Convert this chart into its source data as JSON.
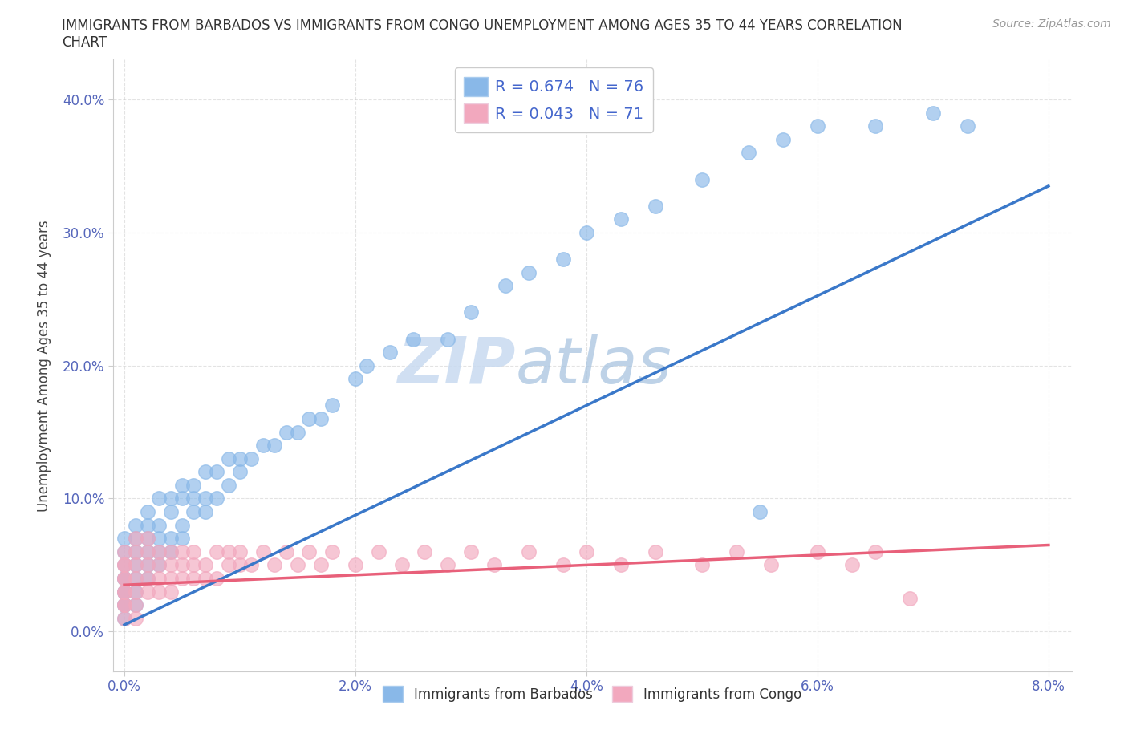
{
  "title_line1": "IMMIGRANTS FROM BARBADOS VS IMMIGRANTS FROM CONGO UNEMPLOYMENT AMONG AGES 35 TO 44 YEARS CORRELATION",
  "title_line2": "CHART",
  "source_text": "Source: ZipAtlas.com",
  "ylabel": "Unemployment Among Ages 35 to 44 years",
  "xlim": [
    -0.001,
    0.082
  ],
  "ylim": [
    -0.03,
    0.43
  ],
  "xticks": [
    0.0,
    0.02,
    0.04,
    0.06,
    0.08
  ],
  "yticks": [
    0.0,
    0.1,
    0.2,
    0.3,
    0.4
  ],
  "barbados_color": "#89b8e8",
  "congo_color": "#f2a8be",
  "barbados_line_color": "#3a78c9",
  "congo_line_color": "#e8607a",
  "barbados_R": 0.674,
  "barbados_N": 76,
  "congo_R": 0.043,
  "congo_N": 71,
  "legend_label_barbados": "Immigrants from Barbados",
  "legend_label_congo": "Immigrants from Congo",
  "watermark_zip": "ZIP",
  "watermark_atlas": "atlas",
  "background_color": "#ffffff",
  "barbados_line_x0": 0.0,
  "barbados_line_y0": 0.005,
  "barbados_line_x1": 0.08,
  "barbados_line_y1": 0.335,
  "congo_line_x0": 0.0,
  "congo_line_y0": 0.035,
  "congo_line_x1": 0.08,
  "congo_line_y1": 0.065,
  "barbados_x": [
    0.0,
    0.0,
    0.0,
    0.0,
    0.0,
    0.0,
    0.0,
    0.0,
    0.0,
    0.0,
    0.001,
    0.001,
    0.001,
    0.001,
    0.001,
    0.001,
    0.001,
    0.002,
    0.002,
    0.002,
    0.002,
    0.002,
    0.002,
    0.003,
    0.003,
    0.003,
    0.003,
    0.003,
    0.004,
    0.004,
    0.004,
    0.004,
    0.005,
    0.005,
    0.005,
    0.005,
    0.006,
    0.006,
    0.006,
    0.007,
    0.007,
    0.007,
    0.008,
    0.008,
    0.009,
    0.009,
    0.01,
    0.01,
    0.011,
    0.012,
    0.013,
    0.014,
    0.015,
    0.016,
    0.017,
    0.018,
    0.02,
    0.021,
    0.023,
    0.025,
    0.028,
    0.03,
    0.033,
    0.035,
    0.038,
    0.04,
    0.043,
    0.046,
    0.05,
    0.054,
    0.057,
    0.06,
    0.065,
    0.07,
    0.073,
    0.055
  ],
  "barbados_y": [
    0.02,
    0.03,
    0.04,
    0.04,
    0.05,
    0.06,
    0.01,
    0.02,
    0.07,
    0.03,
    0.03,
    0.04,
    0.05,
    0.06,
    0.07,
    0.08,
    0.02,
    0.04,
    0.05,
    0.06,
    0.07,
    0.08,
    0.09,
    0.05,
    0.06,
    0.07,
    0.08,
    0.1,
    0.06,
    0.07,
    0.09,
    0.1,
    0.07,
    0.08,
    0.1,
    0.11,
    0.09,
    0.1,
    0.11,
    0.09,
    0.1,
    0.12,
    0.1,
    0.12,
    0.11,
    0.13,
    0.12,
    0.13,
    0.13,
    0.14,
    0.14,
    0.15,
    0.15,
    0.16,
    0.16,
    0.17,
    0.19,
    0.2,
    0.21,
    0.22,
    0.22,
    0.24,
    0.26,
    0.27,
    0.28,
    0.3,
    0.31,
    0.32,
    0.34,
    0.36,
    0.37,
    0.38,
    0.38,
    0.39,
    0.38,
    0.09
  ],
  "congo_x": [
    0.0,
    0.0,
    0.0,
    0.0,
    0.0,
    0.0,
    0.0,
    0.0,
    0.0,
    0.0,
    0.001,
    0.001,
    0.001,
    0.001,
    0.001,
    0.001,
    0.001,
    0.002,
    0.002,
    0.002,
    0.002,
    0.002,
    0.003,
    0.003,
    0.003,
    0.003,
    0.004,
    0.004,
    0.004,
    0.004,
    0.005,
    0.005,
    0.005,
    0.006,
    0.006,
    0.006,
    0.007,
    0.007,
    0.008,
    0.008,
    0.009,
    0.009,
    0.01,
    0.01,
    0.011,
    0.012,
    0.013,
    0.014,
    0.015,
    0.016,
    0.017,
    0.018,
    0.02,
    0.022,
    0.024,
    0.026,
    0.028,
    0.03,
    0.032,
    0.035,
    0.038,
    0.04,
    0.043,
    0.046,
    0.05,
    0.053,
    0.056,
    0.06,
    0.063,
    0.065,
    0.068
  ],
  "congo_y": [
    0.02,
    0.03,
    0.04,
    0.05,
    0.01,
    0.02,
    0.03,
    0.04,
    0.05,
    0.06,
    0.02,
    0.03,
    0.04,
    0.05,
    0.06,
    0.07,
    0.01,
    0.03,
    0.04,
    0.05,
    0.06,
    0.07,
    0.03,
    0.04,
    0.05,
    0.06,
    0.03,
    0.04,
    0.05,
    0.06,
    0.04,
    0.05,
    0.06,
    0.04,
    0.05,
    0.06,
    0.04,
    0.05,
    0.04,
    0.06,
    0.05,
    0.06,
    0.05,
    0.06,
    0.05,
    0.06,
    0.05,
    0.06,
    0.05,
    0.06,
    0.05,
    0.06,
    0.05,
    0.06,
    0.05,
    0.06,
    0.05,
    0.06,
    0.05,
    0.06,
    0.05,
    0.06,
    0.05,
    0.06,
    0.05,
    0.06,
    0.05,
    0.06,
    0.05,
    0.06,
    0.025
  ]
}
